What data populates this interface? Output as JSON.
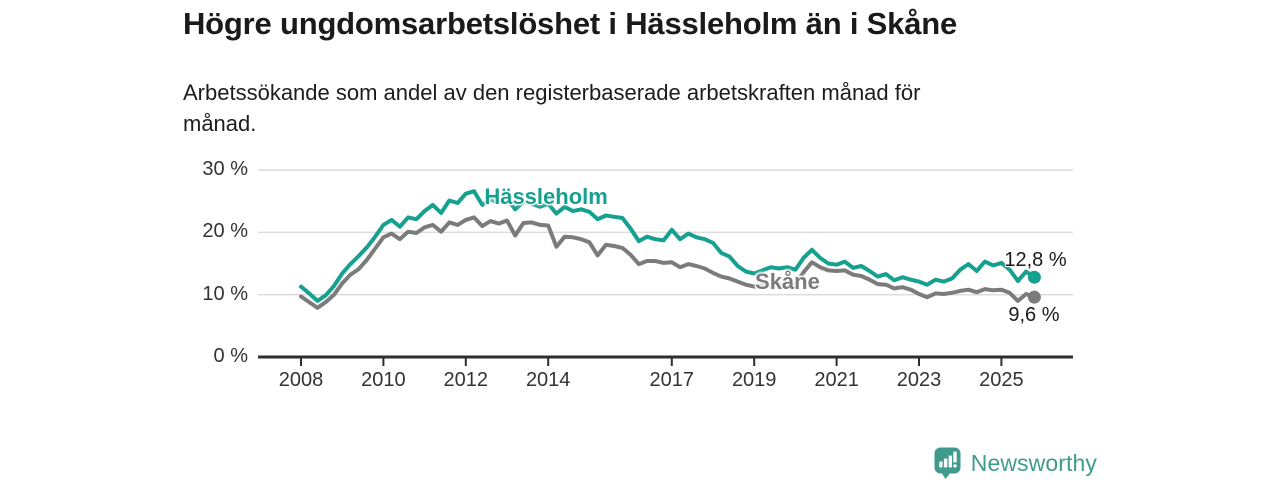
{
  "header": {
    "title": "Högre ungdomsarbetslöshet i Hässleholm än i Skåne",
    "subtitle": "Arbetssökande som andel av den registerbaserade arbetskraften månad för\nmånad."
  },
  "footer": {
    "brand": "Newsworthy",
    "logo_icon": "speech-bubble-bar-chart-icon",
    "brand_color": "#3f9c8d"
  },
  "chart_data": {
    "type": "line",
    "title": "Högre ungdomsarbetslöshet i Hässleholm än i Skåne",
    "xlabel": "",
    "ylabel": "",
    "ylim": [
      0,
      30
    ],
    "xlim": [
      2007.8,
      2026.2
    ],
    "grid": "horizontal",
    "legend": "inline-labels",
    "colors": {
      "hassleholm": "#16a090",
      "skane": "#7b7b7b",
      "gridline": "#dadada",
      "axis": "#2e2e2e",
      "tick_text": "#333333"
    },
    "y_ticks": [
      {
        "value": 0,
        "label": "0 %"
      },
      {
        "value": 10,
        "label": "10 %"
      },
      {
        "value": 20,
        "label": "20 %"
      },
      {
        "value": 30,
        "label": "30 %"
      }
    ],
    "x_ticks": [
      {
        "value": 2008,
        "label": "2008"
      },
      {
        "value": 2010,
        "label": "2010"
      },
      {
        "value": 2012,
        "label": "2012"
      },
      {
        "value": 2014,
        "label": "2014"
      },
      {
        "value": 2017,
        "label": "2017"
      },
      {
        "value": 2019,
        "label": "2019"
      },
      {
        "value": 2021,
        "label": "2021"
      },
      {
        "value": 2023,
        "label": "2023"
      },
      {
        "value": 2025,
        "label": "2025"
      }
    ],
    "x": [
      2008,
      2008.2,
      2008.4,
      2008.6,
      2008.8,
      2009,
      2009.2,
      2009.4,
      2009.6,
      2009.8,
      2010,
      2010.2,
      2010.4,
      2010.6,
      2010.8,
      2011,
      2011.2,
      2011.4,
      2011.6,
      2011.8,
      2012,
      2012.2,
      2012.4,
      2012.6,
      2012.8,
      2013,
      2013.2,
      2013.4,
      2013.6,
      2013.8,
      2014,
      2014.2,
      2014.4,
      2014.6,
      2014.8,
      2015,
      2015.2,
      2015.4,
      2015.6,
      2015.8,
      2016,
      2016.2,
      2016.4,
      2016.6,
      2016.8,
      2017,
      2017.2,
      2017.4,
      2017.6,
      2017.8,
      2018,
      2018.2,
      2018.4,
      2018.6,
      2018.8,
      2019,
      2019.2,
      2019.4,
      2019.6,
      2019.8,
      2020,
      2020.2,
      2020.4,
      2020.6,
      2020.8,
      2021,
      2021.2,
      2021.4,
      2021.6,
      2021.8,
      2022,
      2022.2,
      2022.4,
      2022.6,
      2022.8,
      2023,
      2023.2,
      2023.4,
      2023.6,
      2023.8,
      2024,
      2024.2,
      2024.4,
      2024.6,
      2024.8,
      2025,
      2025.2,
      2025.4,
      2025.6,
      2025.8
    ],
    "series": [
      {
        "id": "hassleholm",
        "name": "Hässleholm",
        "color": "#16a090",
        "end_label": "12,8 %",
        "last_value": 12.8,
        "label_at": {
          "x": 2012.45,
          "y": 25.7
        },
        "end_label_offset": {
          "dx": -30,
          "dy": -28
        },
        "values": [
          11.3,
          10.2,
          9.0,
          9.9,
          11.4,
          13.4,
          14.9,
          16.2,
          17.6,
          19.3,
          21.2,
          22.0,
          20.9,
          22.4,
          22.1,
          23.4,
          24.4,
          23.1,
          25.1,
          24.7,
          26.2,
          26.6,
          24.4,
          25.3,
          24.7,
          25.4,
          23.7,
          24.9,
          24.6,
          24.1,
          24.6,
          23.0,
          24.1,
          23.4,
          23.7,
          23.3,
          22.1,
          22.7,
          22.5,
          22.3,
          20.6,
          18.6,
          19.3,
          18.9,
          18.7,
          20.4,
          18.9,
          19.8,
          19.2,
          18.9,
          18.3,
          16.7,
          16.1,
          14.6,
          13.7,
          13.4,
          13.9,
          14.4,
          14.2,
          14.4,
          14.0,
          15.9,
          17.2,
          15.9,
          15.0,
          14.8,
          15.3,
          14.3,
          14.6,
          13.8,
          12.9,
          13.3,
          12.3,
          12.8,
          12.4,
          12.1,
          11.6,
          12.4,
          12.1,
          12.6,
          14.0,
          14.9,
          13.8,
          15.3,
          14.7,
          15.1,
          14.0,
          12.2,
          13.7,
          12.8
        ]
      },
      {
        "id": "skane",
        "name": "Skåne",
        "color": "#7b7b7b",
        "end_label": "9,6 %",
        "last_value": 9.6,
        "label_at": {
          "x": 2019.02,
          "y": 12.0
        },
        "end_label_offset": {
          "dx": -26,
          "dy": 7
        },
        "values": [
          9.7,
          8.8,
          7.9,
          8.8,
          10.0,
          11.8,
          13.2,
          14.1,
          15.6,
          17.4,
          19.2,
          19.8,
          18.9,
          20.1,
          19.9,
          20.8,
          21.2,
          20.1,
          21.6,
          21.2,
          22.0,
          22.4,
          21.0,
          21.8,
          21.4,
          21.9,
          19.5,
          21.5,
          21.6,
          21.2,
          21.1,
          17.7,
          19.3,
          19.2,
          18.9,
          18.4,
          16.3,
          18.0,
          17.8,
          17.5,
          16.4,
          14.9,
          15.4,
          15.4,
          15.1,
          15.2,
          14.4,
          14.9,
          14.6,
          14.2,
          13.5,
          12.9,
          12.6,
          12.1,
          11.6,
          11.3,
          11.5,
          11.7,
          11.5,
          11.6,
          11.7,
          13.6,
          15.2,
          14.4,
          13.9,
          13.8,
          13.9,
          13.2,
          13.0,
          12.4,
          11.7,
          11.6,
          11.0,
          11.2,
          10.8,
          10.1,
          9.6,
          10.2,
          10.1,
          10.3,
          10.6,
          10.8,
          10.4,
          10.9,
          10.7,
          10.8,
          10.3,
          9.0,
          10.1,
          9.6
        ]
      }
    ]
  }
}
